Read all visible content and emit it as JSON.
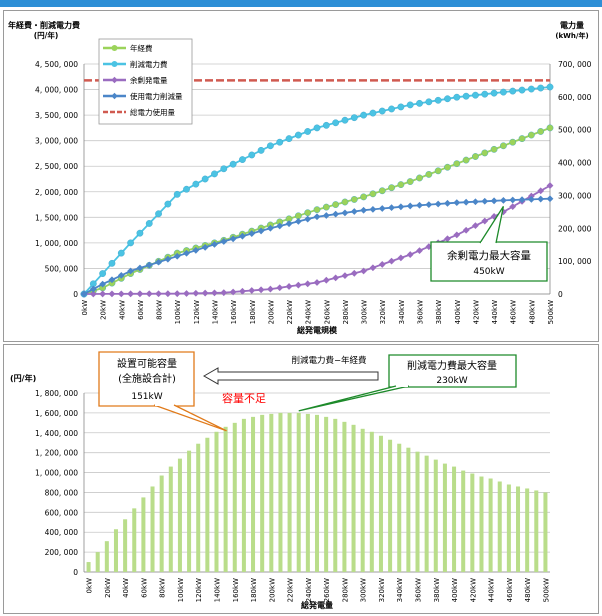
{
  "chart_data": [
    {
      "type": "line",
      "ylabel_left": "年経費・削減電力費",
      "ylabel_left_unit": "(円/年)",
      "ylabel_right": "電力量",
      "ylabel_right_unit": "(kWh/年)",
      "xlabel": "総発電規模",
      "ylim_left": [
        0,
        4500000
      ],
      "ylim_right": [
        0,
        700000
      ],
      "yticks_left": [
        "0",
        "500, 000",
        "1, 000, 000",
        "1, 500, 000",
        "2, 000, 000",
        "2, 500, 000",
        "3, 000, 000",
        "3, 500, 000",
        "4, 000, 000",
        "4, 500, 000"
      ],
      "yticks_right": [
        "0",
        "100, 000",
        "200, 000",
        "300, 000",
        "400, 000",
        "500, 000",
        "600, 000",
        "700, 000"
      ],
      "grid": true,
      "legend_placement": "top-left",
      "x_start": 0,
      "x_step": 10,
      "x_end": 500,
      "x_label_step": 20,
      "x_unit": "kW",
      "series": [
        {
          "name": "年経費",
          "axis": "left",
          "color": "#9bd35a",
          "marker": "circle",
          "points": [
            [
              0,
              0
            ],
            [
              20,
              120000
            ],
            [
              50,
              400000
            ],
            [
              100,
              800000
            ],
            [
              150,
              1050000
            ],
            [
              200,
              1350000
            ],
            [
              250,
              1650000
            ],
            [
              300,
              1900000
            ],
            [
              350,
              2200000
            ],
            [
              400,
              2550000
            ],
            [
              450,
              2900000
            ],
            [
              500,
              3250000
            ]
          ]
        },
        {
          "name": "削減電力費",
          "axis": "left",
          "color": "#4bc3e3",
          "marker": "circle",
          "points": [
            [
              0,
              0
            ],
            [
              20,
              400000
            ],
            [
              50,
              1000000
            ],
            [
              100,
              1950000
            ],
            [
              150,
              2450000
            ],
            [
              200,
              2900000
            ],
            [
              250,
              3250000
            ],
            [
              300,
              3500000
            ],
            [
              350,
              3700000
            ],
            [
              400,
              3850000
            ],
            [
              450,
              3950000
            ],
            [
              500,
              4050000
            ]
          ]
        },
        {
          "name": "余剰発電量",
          "axis": "right",
          "color": "#9a6cc0",
          "marker": "diamond",
          "points": [
            [
              0,
              0
            ],
            [
              100,
              1000
            ],
            [
              150,
              4000
            ],
            [
              200,
              15000
            ],
            [
              250,
              35000
            ],
            [
              300,
              70000
            ],
            [
              350,
              120000
            ],
            [
              400,
              180000
            ],
            [
              450,
              250000
            ],
            [
              500,
              330000
            ]
          ]
        },
        {
          "name": "使用電力削減量",
          "axis": "right",
          "color": "#4b86c8",
          "marker": "diamond",
          "points": [
            [
              0,
              0
            ],
            [
              20,
              30000
            ],
            [
              50,
              70000
            ],
            [
              100,
              115000
            ],
            [
              150,
              160000
            ],
            [
              200,
              200000
            ],
            [
              250,
              235000
            ],
            [
              300,
              255000
            ],
            [
              350,
              268000
            ],
            [
              400,
              278000
            ],
            [
              450,
              285000
            ],
            [
              500,
              290000
            ]
          ]
        },
        {
          "name": "総電力使用量",
          "axis": "right",
          "color": "#d05a50",
          "marker": "none",
          "dashed": true,
          "points": [
            [
              0,
              650000
            ],
            [
              500,
              650000
            ]
          ]
        }
      ],
      "annotations": [
        {
          "text_lines": [
            "余剰電力最大容量",
            "450kW"
          ],
          "target_x": 450
        }
      ]
    },
    {
      "type": "bar",
      "ylabel": "(円/年)",
      "xlabel": "総発電量",
      "series_label": "削減電力費−年経費",
      "ylim": [
        0,
        1800000
      ],
      "yticks": [
        "0",
        "200, 000",
        "400, 000",
        "600, 000",
        "800, 000",
        "1, 000, 000",
        "1, 200, 000",
        "1, 400, 000",
        "1, 600, 000",
        "1, 800, 000"
      ],
      "grid": true,
      "bar_color": "#b9dd8a",
      "values": [
        100000,
        200000,
        310000,
        430000,
        530000,
        640000,
        750000,
        860000,
        970000,
        1060000,
        1140000,
        1220000,
        1290000,
        1350000,
        1410000,
        1460000,
        1500000,
        1540000,
        1560000,
        1580000,
        1590000,
        1600000,
        1600000,
        1600000,
        1590000,
        1580000,
        1560000,
        1540000,
        1510000,
        1480000,
        1440000,
        1410000,
        1370000,
        1330000,
        1290000,
        1250000,
        1210000,
        1170000,
        1130000,
        1090000,
        1060000,
        1020000,
        990000,
        960000,
        940000,
        910000,
        880000,
        860000,
        840000,
        820000,
        800000
      ],
      "annotations": [
        {
          "text_lines": [
            "設置可能容量",
            "(全施設合計)",
            "151kW"
          ],
          "target_x": 151
        },
        {
          "text_lines": [
            "削減電力費最大容量",
            "230kW"
          ],
          "target_x": 230
        },
        {
          "text": "容量不足",
          "color": "#ff0000"
        }
      ]
    }
  ]
}
